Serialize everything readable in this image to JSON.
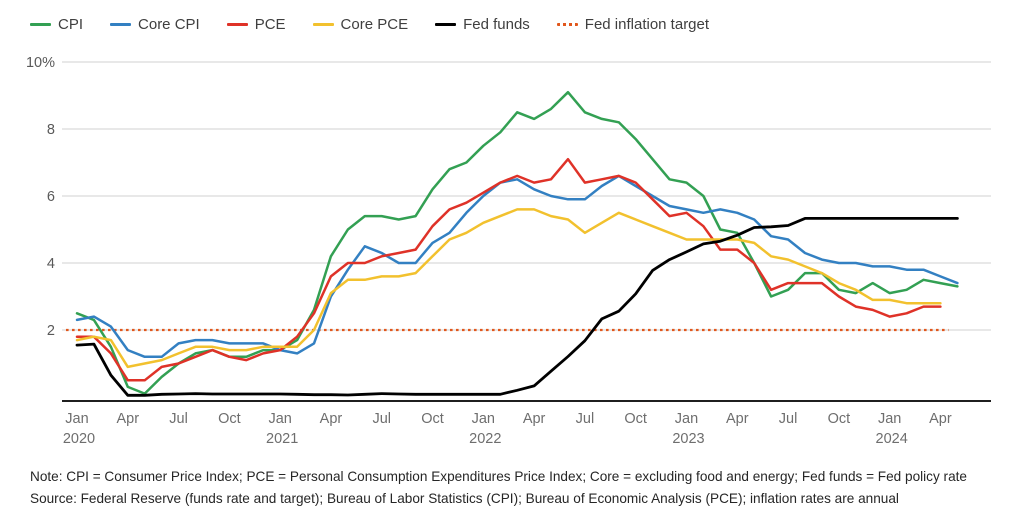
{
  "legend_title": "",
  "notes": {
    "note_line": "Note: CPI = Consumer Price Index; PCE = Personal Consumption Expenditures Price Index; Core = excluding food and energy; Fed funds = Fed policy rate",
    "source_line": "Source: Federal Reserve (funds rate and target); Bureau of Labor Statistics (CPI); Bureau of Economic Analysis (PCE); inflation rates are annual"
  },
  "chart_data": {
    "type": "line",
    "title": "",
    "xlabel": "",
    "ylabel": "",
    "ylim": [
      0,
      10
    ],
    "grid": true,
    "legend_position": "top-left",
    "x_unit": "month",
    "x_range": [
      "Jan 2020",
      "May 2024"
    ],
    "y_axis": {
      "ticks": [
        {
          "value": 2,
          "label": "2"
        },
        {
          "value": 4,
          "label": "4"
        },
        {
          "value": 6,
          "label": "6"
        },
        {
          "value": 8,
          "label": "8"
        },
        {
          "value": 10,
          "label": "10%"
        }
      ]
    },
    "x_axis": {
      "ticks": [
        {
          "index": 0,
          "month": "Jan",
          "year": "2020"
        },
        {
          "index": 3,
          "month": "Apr"
        },
        {
          "index": 6,
          "month": "Jul"
        },
        {
          "index": 9,
          "month": "Oct"
        },
        {
          "index": 12,
          "month": "Jan",
          "year": "2021"
        },
        {
          "index": 15,
          "month": "Apr"
        },
        {
          "index": 18,
          "month": "Jul"
        },
        {
          "index": 21,
          "month": "Oct"
        },
        {
          "index": 24,
          "month": "Jan",
          "year": "2022"
        },
        {
          "index": 27,
          "month": "Apr"
        },
        {
          "index": 30,
          "month": "Jul"
        },
        {
          "index": 33,
          "month": "Oct"
        },
        {
          "index": 36,
          "month": "Jan",
          "year": "2023"
        },
        {
          "index": 39,
          "month": "Apr"
        },
        {
          "index": 42,
          "month": "Jul"
        },
        {
          "index": 45,
          "month": "Oct"
        },
        {
          "index": 48,
          "month": "Jan",
          "year": "2024"
        },
        {
          "index": 51,
          "month": "Apr"
        }
      ]
    },
    "series": [
      {
        "name": "CPI",
        "color": "#33a053",
        "values": [
          2.5,
          2.3,
          1.5,
          0.3,
          0.1,
          0.6,
          1.0,
          1.3,
          1.4,
          1.2,
          1.2,
          1.4,
          1.4,
          1.7,
          2.6,
          4.2,
          5.0,
          5.4,
          5.4,
          5.3,
          5.4,
          6.2,
          6.8,
          7.0,
          7.5,
          7.9,
          8.5,
          8.3,
          8.6,
          9.1,
          8.5,
          8.3,
          8.2,
          7.7,
          7.1,
          6.5,
          6.4,
          6.0,
          5.0,
          4.9,
          4.0,
          3.0,
          3.2,
          3.7,
          3.7,
          3.2,
          3.1,
          3.4,
          3.1,
          3.2,
          3.5,
          3.4,
          3.3
        ]
      },
      {
        "name": "Core CPI",
        "color": "#3380c2",
        "values": [
          2.3,
          2.4,
          2.1,
          1.4,
          1.2,
          1.2,
          1.6,
          1.7,
          1.7,
          1.6,
          1.6,
          1.6,
          1.4,
          1.3,
          1.6,
          3.0,
          3.8,
          4.5,
          4.3,
          4.0,
          4.0,
          4.6,
          4.9,
          5.5,
          6.0,
          6.4,
          6.5,
          6.2,
          6.0,
          5.9,
          5.9,
          6.3,
          6.6,
          6.3,
          6.0,
          5.7,
          5.6,
          5.5,
          5.6,
          5.5,
          5.3,
          4.8,
          4.7,
          4.3,
          4.1,
          4.0,
          4.0,
          3.9,
          3.9,
          3.8,
          3.8,
          3.6,
          3.4
        ]
      },
      {
        "name": "PCE",
        "color": "#df3228",
        "values": [
          1.8,
          1.8,
          1.3,
          0.5,
          0.5,
          0.9,
          1.0,
          1.2,
          1.4,
          1.2,
          1.1,
          1.3,
          1.4,
          1.8,
          2.5,
          3.6,
          4.0,
          4.0,
          4.2,
          4.3,
          4.4,
          5.1,
          5.6,
          5.8,
          6.1,
          6.4,
          6.6,
          6.4,
          6.5,
          7.1,
          6.4,
          6.5,
          6.6,
          6.4,
          5.9,
          5.4,
          5.5,
          5.1,
          4.4,
          4.4,
          4.0,
          3.2,
          3.4,
          3.4,
          3.4,
          3.0,
          2.7,
          2.6,
          2.4,
          2.5,
          2.7,
          2.7,
          null
        ]
      },
      {
        "name": "Core PCE",
        "color": "#f2c12e",
        "values": [
          1.7,
          1.8,
          1.7,
          0.9,
          1.0,
          1.1,
          1.3,
          1.5,
          1.5,
          1.4,
          1.4,
          1.5,
          1.5,
          1.5,
          2.0,
          3.1,
          3.5,
          3.5,
          3.6,
          3.6,
          3.7,
          4.2,
          4.7,
          4.9,
          5.2,
          5.4,
          5.6,
          5.6,
          5.4,
          5.3,
          4.9,
          5.2,
          5.5,
          5.3,
          5.1,
          4.9,
          4.7,
          4.7,
          4.7,
          4.7,
          4.6,
          4.2,
          4.1,
          3.9,
          3.7,
          3.4,
          3.2,
          2.9,
          2.9,
          2.8,
          2.8,
          2.8,
          null
        ]
      },
      {
        "name": "Fed funds",
        "color": "#000000",
        "width": 2.8,
        "values": [
          1.55,
          1.58,
          0.65,
          0.05,
          0.05,
          0.08,
          0.09,
          0.1,
          0.09,
          0.09,
          0.09,
          0.09,
          0.09,
          0.08,
          0.07,
          0.07,
          0.06,
          0.08,
          0.1,
          0.09,
          0.08,
          0.08,
          0.08,
          0.08,
          0.08,
          0.08,
          0.2,
          0.33,
          0.77,
          1.21,
          1.68,
          2.33,
          2.56,
          3.08,
          3.78,
          4.1,
          4.33,
          4.57,
          4.65,
          4.83,
          5.06,
          5.08,
          5.12,
          5.33,
          5.33,
          5.33,
          5.33,
          5.33,
          5.33,
          5.33,
          5.33,
          5.33,
          5.33
        ]
      },
      {
        "name": "Fed inflation target",
        "color": "#e1571c",
        "type": "target",
        "value": 2.0,
        "style": "dotted"
      }
    ]
  }
}
